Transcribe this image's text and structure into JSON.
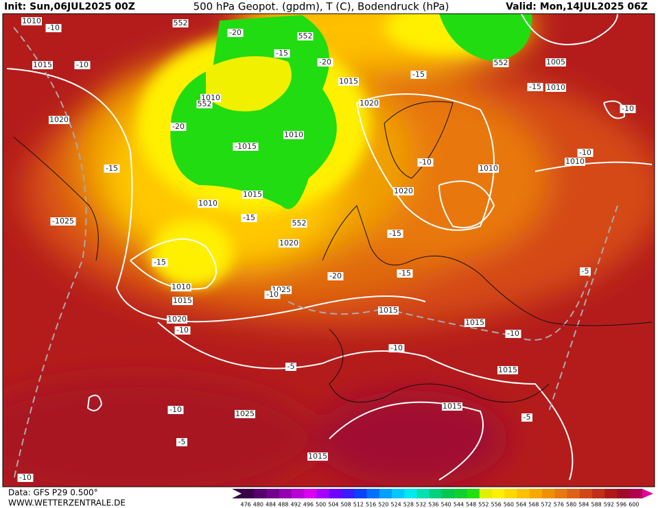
{
  "header": {
    "init": "Init: Sun,06JUL2025 00Z",
    "title": "500 hPa Geopot. (gpdm), T (C), Bodendruck (hPa)",
    "valid": "Valid: Mon,14JUL2025 06Z"
  },
  "footer": {
    "data": "Data: GFS P29 0.500°",
    "site": "WWW.WETTERZENTRALE.DE"
  },
  "labels": [
    "1010",
    "-10",
    "552",
    "-20",
    "552",
    "-15",
    "-20",
    "1015",
    "-10",
    "1015",
    "-15",
    "1005",
    "552",
    "-15",
    "1010",
    "1010",
    "552",
    "1020",
    "-10",
    "1020",
    "-20",
    "-1015",
    "1010",
    "-10",
    "-10",
    "1010",
    "1010",
    "-15",
    "1020",
    "1015",
    "1010",
    "-15",
    "-1025",
    "552",
    "-15",
    "1020",
    "-15",
    "-5",
    "-20",
    "-15",
    "1010",
    "1025",
    "-10",
    "1015",
    "1015",
    "1020",
    "1015",
    "-10",
    "-10",
    "-10",
    "-5",
    "1015",
    "-10",
    "1025",
    "1015",
    "-5",
    "-5",
    "1015",
    "-10"
  ],
  "legend": {
    "items": [
      {
        "label": 476,
        "color": "#3a004a"
      },
      {
        "label": 480,
        "color": "#56006e"
      },
      {
        "label": 484,
        "color": "#72008e"
      },
      {
        "label": 488,
        "color": "#9400b0"
      },
      {
        "label": 492,
        "color": "#b800d4"
      },
      {
        "label": 496,
        "color": "#dc00f0"
      },
      {
        "label": 500,
        "color": "#a400ff"
      },
      {
        "label": 504,
        "color": "#7000ff"
      },
      {
        "label": 508,
        "color": "#3c1cff"
      },
      {
        "label": 512,
        "color": "#0a40ff"
      },
      {
        "label": 516,
        "color": "#0070ff"
      },
      {
        "label": 520,
        "color": "#00a0ff"
      },
      {
        "label": 524,
        "color": "#00c8ff"
      },
      {
        "label": 528,
        "color": "#00e8f0"
      },
      {
        "label": 532,
        "color": "#00e0b0"
      },
      {
        "label": 536,
        "color": "#00d080"
      },
      {
        "label": 540,
        "color": "#00c850"
      },
      {
        "label": 544,
        "color": "#10d030"
      },
      {
        "label": 548,
        "color": "#20e010"
      },
      {
        "label": 552,
        "color": "#e0f000"
      },
      {
        "label": 556,
        "color": "#fff000"
      },
      {
        "label": 560,
        "color": "#ffd800"
      },
      {
        "label": 564,
        "color": "#ffc000"
      },
      {
        "label": 568,
        "color": "#f8a800"
      },
      {
        "label": 572,
        "color": "#f09000"
      },
      {
        "label": 576,
        "color": "#e87810"
      },
      {
        "label": 580,
        "color": "#e06018"
      },
      {
        "label": 584,
        "color": "#d04818"
      },
      {
        "label": 588,
        "color": "#c03018"
      },
      {
        "label": 592,
        "color": "#b01818"
      },
      {
        "label": 596,
        "color": "#a00c28"
      },
      {
        "label": 600,
        "color": "#b00050"
      }
    ]
  }
}
